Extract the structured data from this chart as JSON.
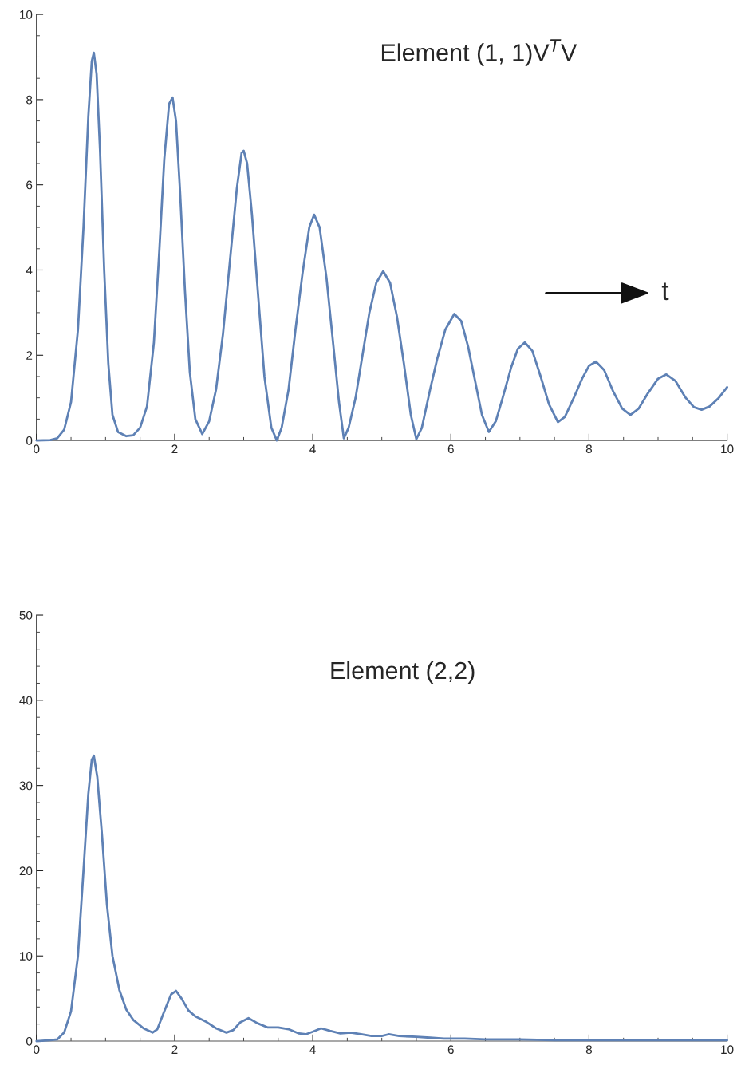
{
  "chart_data": [
    {
      "type": "line",
      "title": "Element (1, 1)V$^{T}$V",
      "annotations": [
        "t"
      ],
      "xlim": [
        0,
        10
      ],
      "ylim": [
        0,
        10
      ],
      "xticks": [
        0,
        2,
        4,
        6,
        8,
        10
      ],
      "yticks": [
        0,
        2,
        4,
        6,
        8,
        10
      ],
      "grid": false,
      "legend": false,
      "series": [
        {
          "color": "#5e81b5",
          "x": [
            0,
            0.2,
            0.3,
            0.4,
            0.5,
            0.6,
            0.68,
            0.75,
            0.8,
            0.83,
            0.87,
            0.92,
            0.98,
            1.04,
            1.1,
            1.18,
            1.3,
            1.4,
            1.5,
            1.6,
            1.7,
            1.78,
            1.85,
            1.92,
            1.97,
            2.02,
            2.08,
            2.15,
            2.22,
            2.3,
            2.4,
            2.5,
            2.6,
            2.7,
            2.8,
            2.9,
            2.97,
            3.0,
            3.05,
            3.12,
            3.2,
            3.3,
            3.4,
            3.48,
            3.55,
            3.65,
            3.75,
            3.85,
            3.95,
            4.02,
            4.1,
            4.2,
            4.3,
            4.38,
            4.45,
            4.52,
            4.62,
            4.72,
            4.82,
            4.92,
            5.02,
            5.12,
            5.22,
            5.32,
            5.42,
            5.5,
            5.58,
            5.7,
            5.8,
            5.92,
            6.05,
            6.15,
            6.25,
            6.35,
            6.45,
            6.55,
            6.65,
            6.75,
            6.87,
            6.97,
            7.07,
            7.18,
            7.3,
            7.42,
            7.55,
            7.65,
            7.78,
            7.9,
            8.0,
            8.1,
            8.22,
            8.35,
            8.48,
            8.6,
            8.72,
            8.85,
            9.0,
            9.12,
            9.25,
            9.4,
            9.52,
            9.63,
            9.75,
            9.88,
            10
          ],
          "values": [
            0,
            0.01,
            0.05,
            0.25,
            0.9,
            2.6,
            5.0,
            7.6,
            8.9,
            9.1,
            8.6,
            6.8,
            4.0,
            1.8,
            0.6,
            0.2,
            0.1,
            0.12,
            0.3,
            0.8,
            2.3,
            4.5,
            6.6,
            7.9,
            8.05,
            7.5,
            5.8,
            3.5,
            1.6,
            0.5,
            0.15,
            0.45,
            1.2,
            2.5,
            4.2,
            5.9,
            6.75,
            6.8,
            6.5,
            5.3,
            3.6,
            1.5,
            0.3,
            0.0,
            0.3,
            1.2,
            2.6,
            3.9,
            5.0,
            5.3,
            5.0,
            3.8,
            2.2,
            0.9,
            0.05,
            0.3,
            1.0,
            2.0,
            3.0,
            3.7,
            3.97,
            3.7,
            2.9,
            1.8,
            0.6,
            0.03,
            0.3,
            1.2,
            1.9,
            2.6,
            2.97,
            2.8,
            2.2,
            1.4,
            0.6,
            0.2,
            0.45,
            1.0,
            1.7,
            2.15,
            2.3,
            2.1,
            1.5,
            0.85,
            0.43,
            0.55,
            1.0,
            1.45,
            1.75,
            1.85,
            1.65,
            1.15,
            0.75,
            0.6,
            0.75,
            1.1,
            1.45,
            1.55,
            1.4,
            1.0,
            0.78,
            0.72,
            0.8,
            1.0,
            1.25
          ]
        }
      ]
    },
    {
      "type": "line",
      "title": "Element (2,2)",
      "xlim": [
        0,
        10
      ],
      "ylim": [
        0,
        50
      ],
      "xticks": [
        0,
        2,
        4,
        6,
        8,
        10
      ],
      "yticks": [
        0,
        10,
        20,
        30,
        40,
        50
      ],
      "grid": false,
      "legend": false,
      "series": [
        {
          "color": "#5e81b5",
          "x": [
            0,
            0.2,
            0.3,
            0.4,
            0.5,
            0.6,
            0.68,
            0.75,
            0.8,
            0.83,
            0.88,
            0.95,
            1.02,
            1.1,
            1.2,
            1.3,
            1.4,
            1.55,
            1.68,
            1.75,
            1.85,
            1.95,
            2.02,
            2.1,
            2.2,
            2.3,
            2.45,
            2.6,
            2.75,
            2.85,
            2.95,
            3.07,
            3.2,
            3.35,
            3.5,
            3.65,
            3.8,
            3.9,
            4.0,
            4.12,
            4.25,
            4.4,
            4.55,
            4.7,
            4.85,
            5.0,
            5.1,
            5.25,
            5.5,
            5.7,
            5.9,
            6.0,
            6.2,
            6.5,
            7.0,
            7.5,
            8.0,
            8.5,
            9.0,
            9.5,
            10
          ],
          "values": [
            0,
            0.1,
            0.2,
            1.0,
            3.5,
            10,
            20,
            29,
            33,
            33.5,
            31,
            24,
            16,
            10,
            6,
            3.7,
            2.5,
            1.5,
            1.0,
            1.4,
            3.5,
            5.5,
            5.9,
            5.0,
            3.6,
            2.9,
            2.3,
            1.5,
            1.0,
            1.3,
            2.2,
            2.7,
            2.1,
            1.6,
            1.6,
            1.4,
            0.9,
            0.8,
            1.1,
            1.5,
            1.2,
            0.9,
            1.0,
            0.8,
            0.6,
            0.6,
            0.8,
            0.6,
            0.5,
            0.4,
            0.3,
            0.3,
            0.3,
            0.2,
            0.2,
            0.1,
            0.1,
            0.1,
            0.1,
            0.1,
            0.1
          ]
        }
      ]
    }
  ]
}
